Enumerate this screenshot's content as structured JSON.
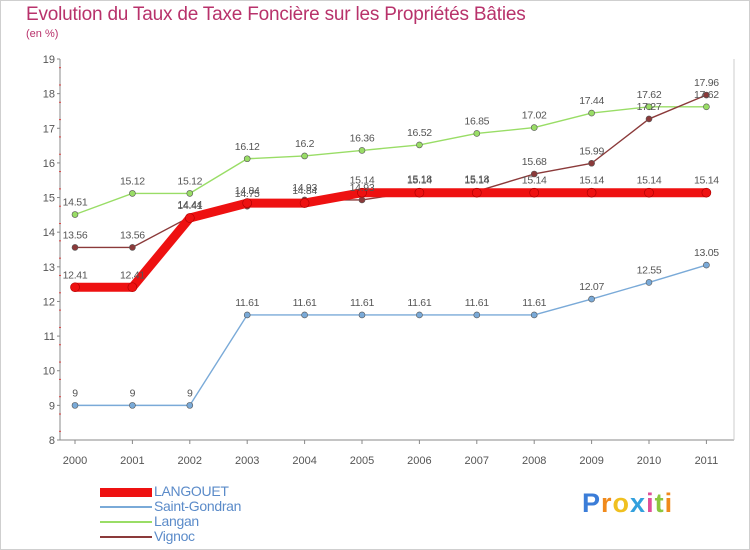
{
  "chart_data": {
    "type": "line",
    "title": "Evolution du Taux de Taxe Foncière sur les Propriétés Bâties",
    "subtitle": "(en %)",
    "xlabel": "",
    "ylabel": "",
    "ylim": [
      8,
      19
    ],
    "yticks": [
      "8",
      "9",
      "10",
      "11",
      "12",
      "13",
      "14",
      "15",
      "16",
      "17",
      "18",
      "19"
    ],
    "categories": [
      "2000",
      "2001",
      "2002",
      "2003",
      "2004",
      "2005",
      "2006",
      "2007",
      "2008",
      "2009",
      "2010",
      "2011"
    ],
    "grid": false,
    "legend_position": "bottom-left",
    "series": [
      {
        "name": "LANGOUET",
        "color": "#ee1111",
        "values": [
          12.41,
          12.41,
          14.41,
          14.84,
          14.84,
          15.14,
          15.14,
          15.14,
          15.14,
          15.14,
          15.14,
          15.14
        ],
        "labels": [
          "12.41",
          "12.41",
          "14.41",
          "14.84",
          "14.84",
          "15.14",
          "15.14",
          "15.14",
          "15.14",
          "15.14",
          "15.14",
          "15.14"
        ]
      },
      {
        "name": "Saint-Gondran",
        "color": "#7aaad8",
        "values": [
          9,
          9,
          9,
          11.61,
          11.61,
          11.61,
          11.61,
          11.61,
          11.61,
          12.07,
          12.55,
          13.05
        ],
        "labels": [
          "9",
          "9",
          "9",
          "11.61",
          "11.61",
          "11.61",
          "11.61",
          "11.61",
          "11.61",
          "12.07",
          "12.55",
          "13.05"
        ]
      },
      {
        "name": "Langan",
        "color": "#99dd66",
        "values": [
          14.51,
          15.12,
          15.12,
          16.12,
          16.2,
          16.36,
          16.52,
          16.85,
          17.02,
          17.44,
          17.62,
          17.62
        ],
        "labels": [
          "14.51",
          "15.12",
          "15.12",
          "16.12",
          "16.2",
          "16.36",
          "16.52",
          "16.85",
          "17.02",
          "17.44",
          "17.62",
          "17.62"
        ]
      },
      {
        "name": "Vignoc",
        "color": "#8b3a3a",
        "values": [
          13.56,
          13.56,
          14.44,
          14.75,
          14.93,
          14.93,
          15.18,
          15.18,
          15.68,
          15.99,
          17.27,
          17.96
        ],
        "labels": [
          "13.56",
          "13.56",
          "14.44",
          "14.75",
          "14.93",
          "14.93",
          "15.18",
          "15.18",
          "15.68",
          "15.99",
          "17.27",
          "17.96"
        ]
      }
    ]
  },
  "brand": {
    "logo_text": "Proxiti",
    "letter_colors": [
      "#3b7dd8",
      "#f08a1c",
      "#f0c020",
      "#33a0dd",
      "#e04f9a",
      "#8cc63f",
      "#f08a1c"
    ]
  }
}
